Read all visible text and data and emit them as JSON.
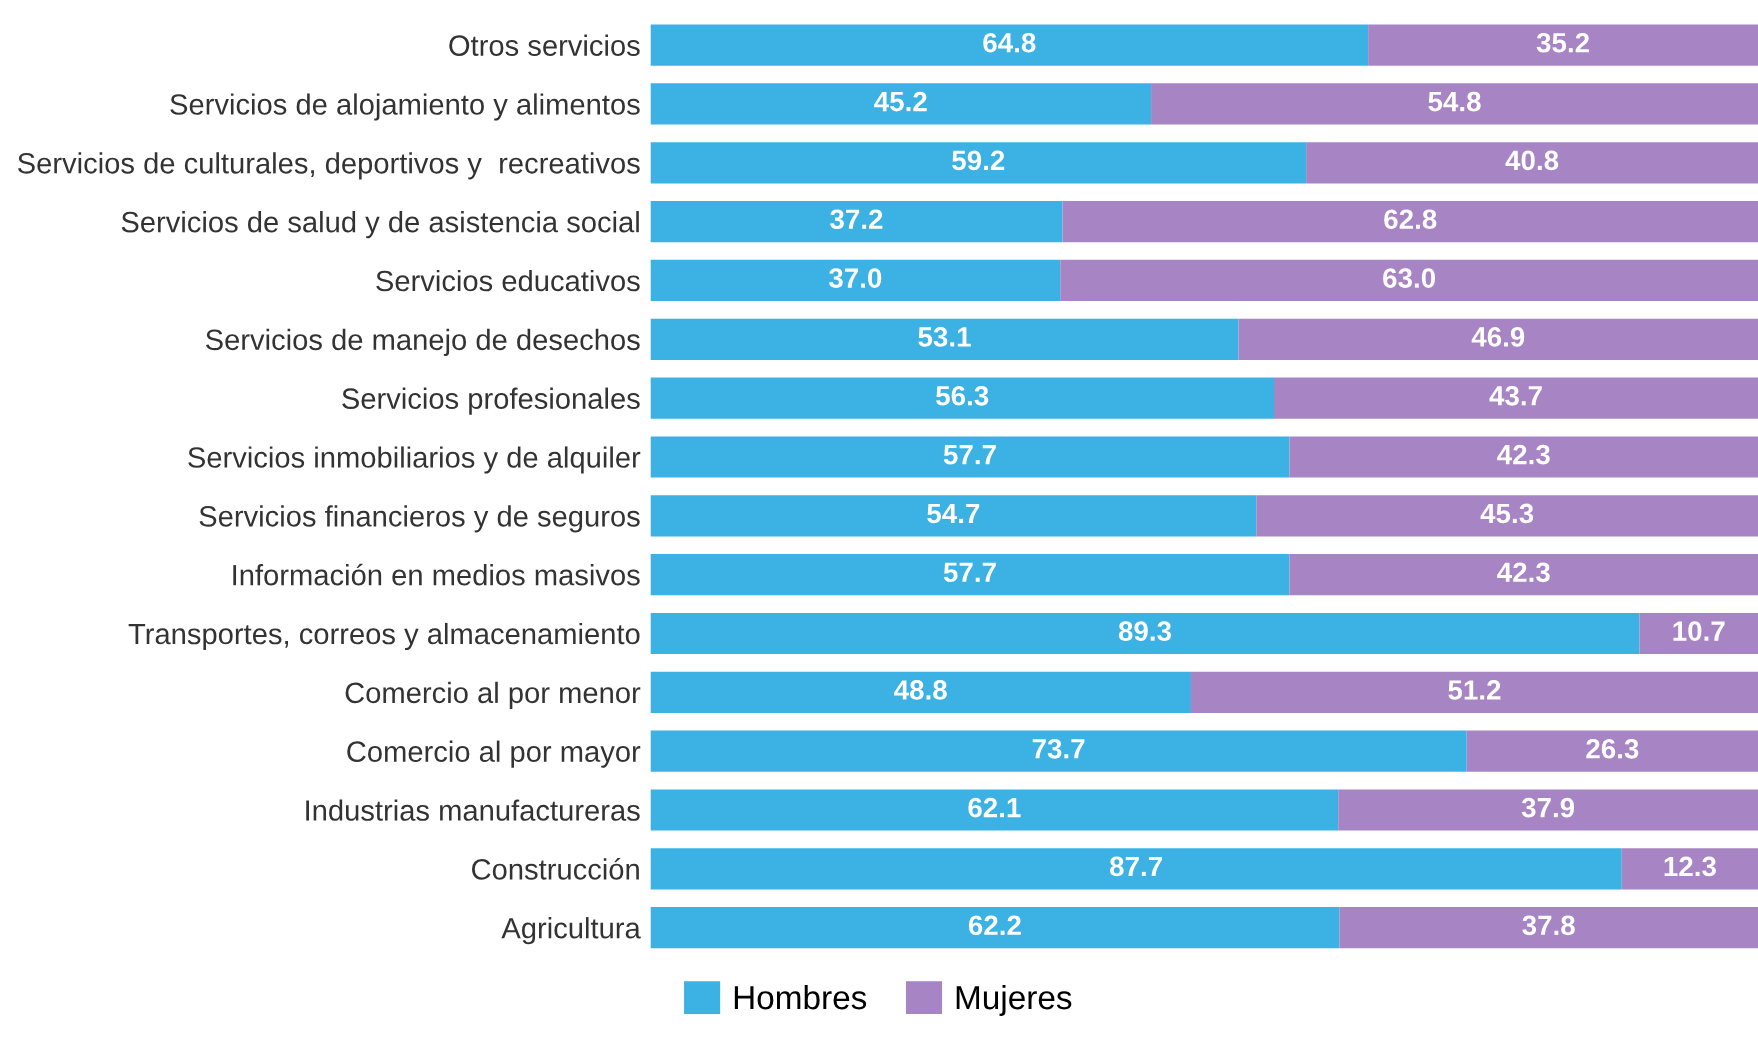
{
  "chart_data": {
    "type": "bar",
    "orientation": "horizontal",
    "stacked": true,
    "legend": "bottom",
    "categories": [
      "Otros servicios",
      "Servicios de alojamiento y alimentos",
      "Servicios de culturales, deportivos y  recreativos",
      "Servicios de salud y de asistencia social",
      "Servicios educativos",
      "Servicios de manejo de desechos",
      "Servicios profesionales",
      "Servicios inmobiliarios y de alquiler",
      "Servicios financieros y de seguros",
      "Información en medios masivos",
      "Transportes, correos y almacenamiento",
      "Comercio al por menor",
      "Comercio al por mayor",
      "Industrias manufactureras",
      "Construcción",
      "Agricultura"
    ],
    "series": [
      {
        "name": "Hombres",
        "color": "#3bb2e3",
        "values": [
          64.8,
          45.2,
          59.2,
          37.2,
          37.0,
          53.1,
          56.3,
          57.7,
          54.7,
          57.7,
          89.3,
          48.8,
          73.7,
          62.1,
          87.7,
          62.2
        ],
        "value_labels": [
          "64.8",
          "45.2",
          "59.2",
          "37.2",
          "37.0",
          "53.1",
          "56.3",
          "57.7",
          "54.7",
          "57.7",
          "89.3",
          "48.8",
          "73.7",
          "62.1",
          "87.7",
          "62.2"
        ]
      },
      {
        "name": "Mujeres",
        "color": "#a784c3",
        "values": [
          35.2,
          54.8,
          40.8,
          62.8,
          63.0,
          46.9,
          43.7,
          42.3,
          45.3,
          42.3,
          10.7,
          51.2,
          26.3,
          37.9,
          12.3,
          37.8
        ],
        "value_labels": [
          "35.2",
          "54.8",
          "40.8",
          "62.8",
          "63.0",
          "46.9",
          "43.7",
          "42.3",
          "45.3",
          "42.3",
          "10.7",
          "51.2",
          "26.3",
          "37.9",
          "12.3",
          "37.8"
        ]
      }
    ]
  }
}
